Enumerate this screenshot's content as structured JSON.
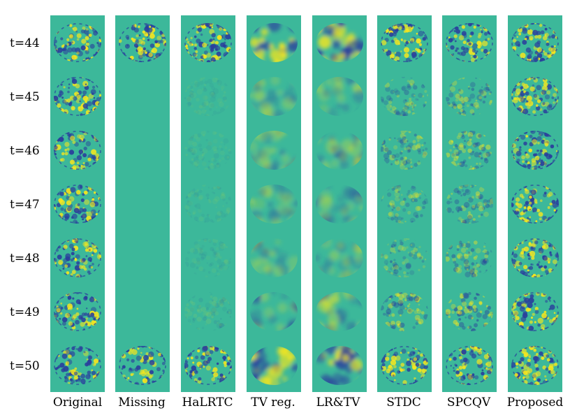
{
  "rows": [
    {
      "label": "t=44"
    },
    {
      "label": "t=45"
    },
    {
      "label": "t=46"
    },
    {
      "label": "t=47"
    },
    {
      "label": "t=48"
    },
    {
      "label": "t=49"
    },
    {
      "label": "t=50"
    }
  ],
  "columns": [
    {
      "label": "Original"
    },
    {
      "label": "Missing"
    },
    {
      "label": "HaLRTC"
    },
    {
      "label": "TV reg."
    },
    {
      "label": "LR&TV"
    },
    {
      "label": "STDC"
    },
    {
      "label": "SPCQV"
    },
    {
      "label": "Proposed"
    }
  ],
  "colors": {
    "background": "#3cb89a",
    "positive": "#f5e61e",
    "negative": "#2a3f9c",
    "mid": "#3cb89a"
  }
}
